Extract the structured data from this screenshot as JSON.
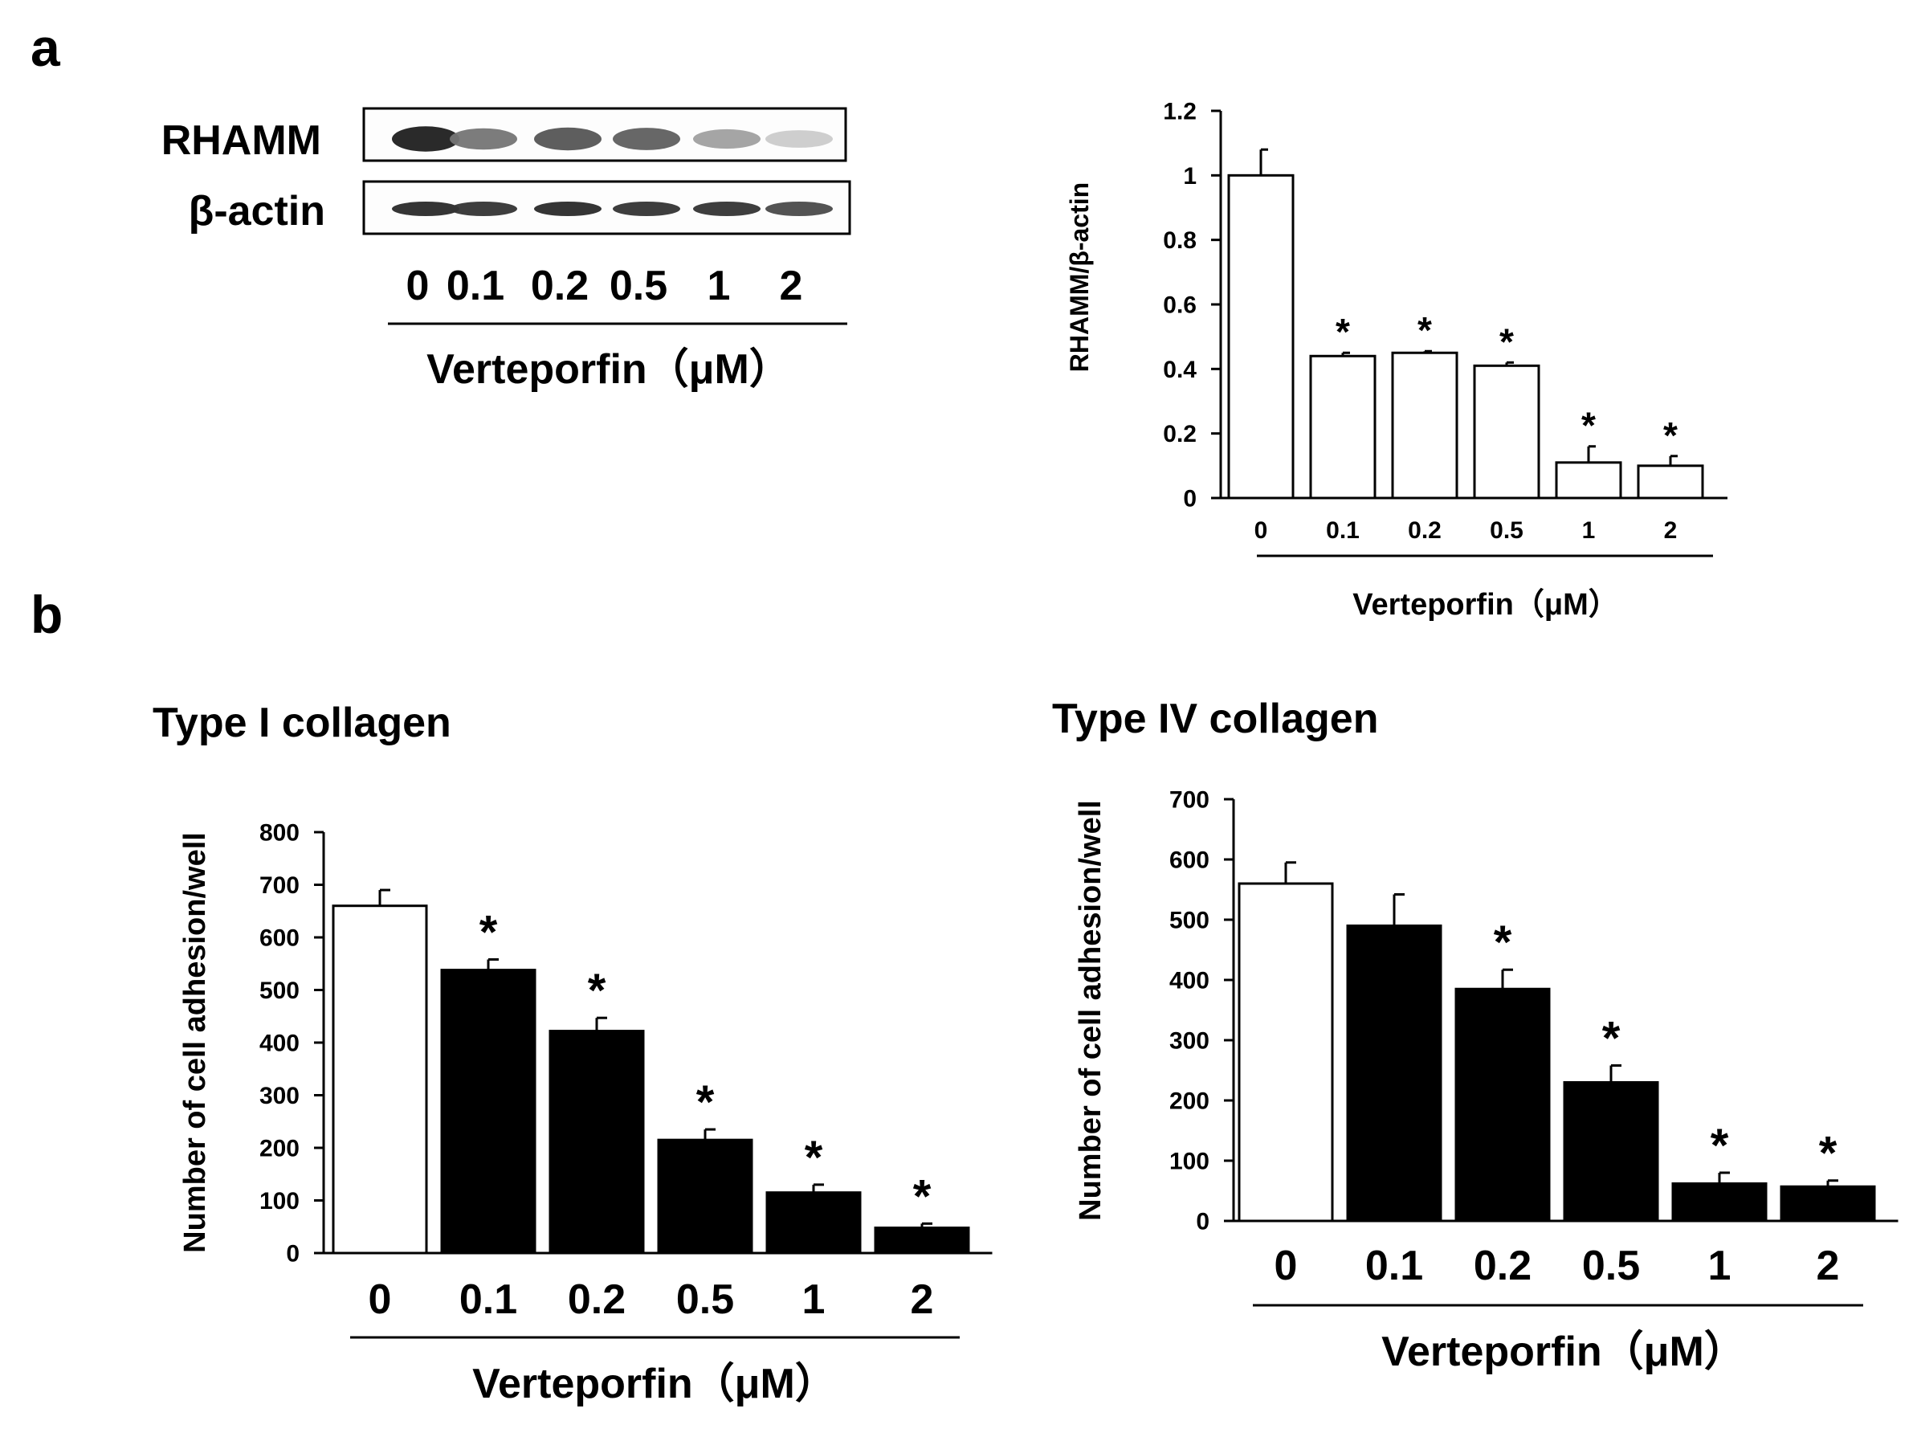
{
  "panels": {
    "a": {
      "letter": "a"
    },
    "b": {
      "letter": "b"
    }
  },
  "blot": {
    "rows": [
      {
        "label": "RHAMM",
        "band_intensity": [
          0.95,
          0.55,
          0.7,
          0.65,
          0.35,
          0.15
        ]
      },
      {
        "label": "β-actin",
        "band_intensity": [
          0.9,
          0.85,
          0.9,
          0.85,
          0.85,
          0.75
        ]
      }
    ],
    "lanes": [
      "0",
      "0.1",
      "0.2",
      "0.5",
      "1",
      "2"
    ],
    "xtitle": "Verteporfin（μM）"
  },
  "chart_data": [
    {
      "id": "rhamm-ratio",
      "type": "bar",
      "title": "",
      "categories": [
        "0",
        "0.1",
        "0.2",
        "0.5",
        "1",
        "2"
      ],
      "values": [
        1.0,
        0.44,
        0.45,
        0.41,
        0.11,
        0.1
      ],
      "errors": [
        0.08,
        0.01,
        0.005,
        0.01,
        0.05,
        0.03
      ],
      "fills": [
        "#ffffff",
        "#ffffff",
        "#ffffff",
        "#ffffff",
        "#ffffff",
        "#ffffff"
      ],
      "significant": [
        false,
        true,
        true,
        true,
        true,
        true
      ],
      "sig_marker": "*",
      "ylim": [
        0,
        1.2
      ],
      "yticks": [
        0,
        0.2,
        0.4,
        0.6,
        0.8,
        1,
        1.2
      ],
      "ytick_labels": [
        "0",
        "0.2",
        "0.4",
        "0.6",
        "0.8",
        "1",
        "1.2"
      ],
      "ylabel": "RHAMM/β-actin",
      "xlabel": "Verteporfin（μM）",
      "grid": false
    },
    {
      "id": "type-i-collagen",
      "type": "bar",
      "title": "Type I collagen",
      "categories": [
        "0",
        "0.1",
        "0.2",
        "0.5",
        "1",
        "2"
      ],
      "values": [
        660,
        538,
        422,
        215,
        115,
        48
      ],
      "errors": [
        30,
        20,
        25,
        20,
        15,
        8
      ],
      "fills": [
        "#ffffff",
        "#000000",
        "#000000",
        "#000000",
        "#000000",
        "#000000"
      ],
      "significant": [
        false,
        true,
        true,
        true,
        true,
        true
      ],
      "sig_marker": "*",
      "ylim": [
        0,
        800
      ],
      "yticks": [
        0,
        100,
        200,
        300,
        400,
        500,
        600,
        700,
        800
      ],
      "ytick_labels": [
        "0",
        "100",
        "200",
        "300",
        "400",
        "500",
        "600",
        "700",
        "800"
      ],
      "ylabel": "Number of cell adhesion/well",
      "xlabel": "Verteporfin（μM）",
      "grid": false
    },
    {
      "id": "type-iv-collagen",
      "type": "bar",
      "title": "Type IV collagen",
      "categories": [
        "0",
        "0.1",
        "0.2",
        "0.5",
        "1",
        "2"
      ],
      "values": [
        560,
        490,
        385,
        230,
        62,
        57
      ],
      "errors": [
        35,
        52,
        32,
        28,
        18,
        10
      ],
      "fills": [
        "#ffffff",
        "#000000",
        "#000000",
        "#000000",
        "#000000",
        "#000000"
      ],
      "significant": [
        false,
        false,
        true,
        true,
        true,
        true
      ],
      "sig_marker": "*",
      "ylim": [
        0,
        700
      ],
      "yticks": [
        0,
        100,
        200,
        300,
        400,
        500,
        600,
        700
      ],
      "ytick_labels": [
        "0",
        "100",
        "200",
        "300",
        "400",
        "500",
        "600",
        "700"
      ],
      "ylabel": "Number of cell adhesion/well",
      "xlabel": "Verteporfin（μM）",
      "grid": false
    }
  ]
}
